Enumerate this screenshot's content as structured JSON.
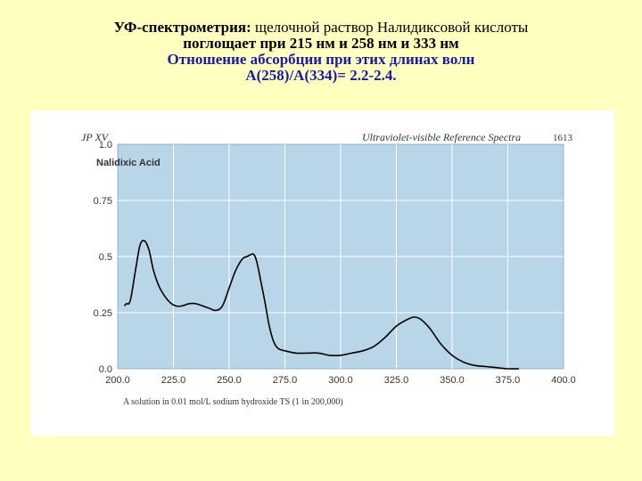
{
  "slide": {
    "title_bold": "УФ-спектрометрия:",
    "title_rest": " щелочной раствор Налидиксовой кислоты",
    "line2": "поглощает при 215 нм и 258 нм и 333 нм",
    "line3": "Отношение абсорбции при этих длинах волн",
    "line4": "A(258)/A(334)= 2.2-2.4."
  },
  "figure": {
    "header_left": "JP XV",
    "header_center": "Ultraviolet-visible Reference Spectra",
    "header_right": "1613",
    "footnote": "A solution in 0.01 mol/L sodium hydroxide TS (1 in 200,000)"
  },
  "chart_data": {
    "type": "line",
    "title": "Nalidixic Acid",
    "xlabel": "",
    "ylabel": "",
    "xlim": [
      200.0,
      400.0
    ],
    "ylim": [
      0.0,
      1.0
    ],
    "xticks": [
      "200.0",
      "225.0",
      "250.0",
      "275.0",
      "300.0",
      "325.0",
      "350.0",
      "375.0",
      "400.0"
    ],
    "yticks": [
      "0.0",
      "0.25",
      "0.5",
      "0.75",
      "1.0"
    ],
    "grid": true,
    "colors": {
      "plot_bg": "#b9d5e8",
      "grid": "#ffffff",
      "line": "#000000",
      "slide_bg": "#ffffc0"
    },
    "series": [
      {
        "x": [
          203,
          204,
          205,
          206,
          208,
          210,
          212,
          214,
          216,
          218,
          220,
          223,
          226,
          229,
          232,
          235,
          238,
          241,
          244,
          247,
          250,
          253,
          256,
          258,
          260,
          261,
          262,
          263,
          264,
          266,
          268,
          270,
          272,
          275,
          280,
          285,
          290,
          295,
          300,
          305,
          310,
          315,
          320,
          325,
          330,
          333,
          336,
          340,
          345,
          350,
          355,
          360,
          365,
          370,
          375,
          380
        ],
        "y": [
          0.28,
          0.29,
          0.29,
          0.32,
          0.44,
          0.55,
          0.57,
          0.53,
          0.44,
          0.38,
          0.34,
          0.3,
          0.28,
          0.28,
          0.29,
          0.29,
          0.28,
          0.27,
          0.26,
          0.28,
          0.36,
          0.44,
          0.49,
          0.5,
          0.51,
          0.51,
          0.49,
          0.45,
          0.4,
          0.3,
          0.19,
          0.12,
          0.09,
          0.08,
          0.07,
          0.07,
          0.07,
          0.06,
          0.06,
          0.07,
          0.08,
          0.1,
          0.14,
          0.19,
          0.22,
          0.23,
          0.22,
          0.18,
          0.11,
          0.06,
          0.03,
          0.015,
          0.01,
          0.005,
          0.0,
          0.0
        ]
      }
    ]
  }
}
